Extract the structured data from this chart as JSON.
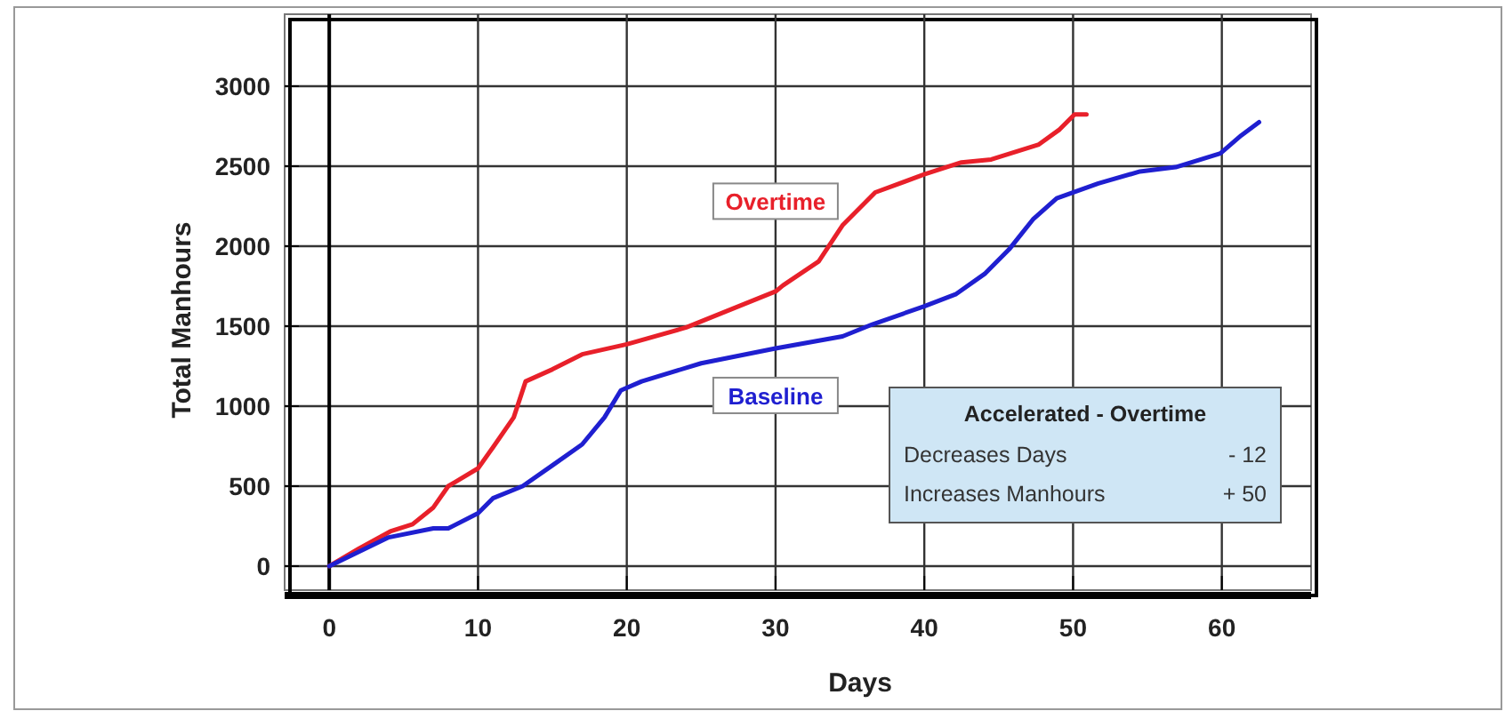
{
  "chart_data": {
    "type": "line",
    "xlabel": "Days",
    "ylabel": "Total Manhours",
    "xlim": [
      -3,
      66
    ],
    "xticks": [
      0,
      10,
      20,
      30,
      40,
      50,
      60
    ],
    "ylim": [
      -150,
      3450
    ],
    "yticks": [
      0,
      500,
      1000,
      1500,
      2000,
      2500,
      3000
    ],
    "grid": true,
    "marker": "none",
    "line_style": "solid",
    "series": [
      {
        "name": "Overtime",
        "color": "#e8202a",
        "x": [
          0,
          2,
          4.1,
          5.6,
          7,
          8,
          10,
          11,
          12.4,
          13.2,
          15,
          17,
          20,
          24,
          30,
          30.5,
          32.9,
          34.5,
          36.7,
          40,
          42.5,
          44.5,
          47.7,
          49.1,
          50.1,
          50.9
        ],
        "values": [
          0,
          110,
          217,
          262,
          367,
          500,
          611,
          742,
          930,
          1155,
          1230,
          1324,
          1387,
          1492,
          1717,
          1755,
          1905,
          2130,
          2336,
          2449,
          2524,
          2542,
          2636,
          2730,
          2824,
          2824
        ]
      },
      {
        "name": "Baseline",
        "color": "#1f1fd0",
        "x": [
          0,
          4,
          7,
          8,
          10,
          11,
          13,
          15,
          17,
          18.5,
          19.6,
          21,
          25,
          30,
          34.5,
          36.5,
          40,
          42.1,
          44.1,
          45.7,
          47.3,
          48.9,
          51.7,
          54.5,
          56.9,
          59.9,
          61.3,
          62.5
        ],
        "values": [
          0,
          180,
          236,
          236,
          330,
          424,
          500,
          630,
          761,
          930,
          1099,
          1155,
          1268,
          1361,
          1436,
          1511,
          1624,
          1699,
          1830,
          1980,
          2167,
          2299,
          2392,
          2467,
          2494,
          2580,
          2692,
          2775
        ]
      }
    ],
    "annotations": [
      "Accelerated - Overtime",
      "Decreases Days",
      "- 12",
      "Increases Manhours",
      "+ 50"
    ]
  }
}
